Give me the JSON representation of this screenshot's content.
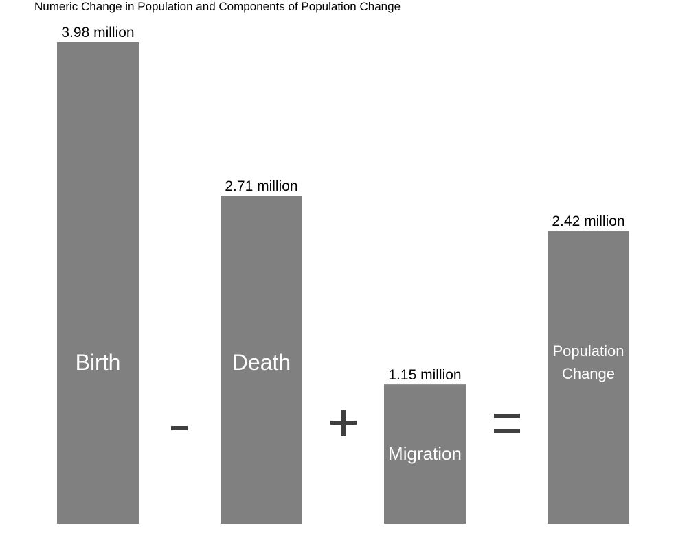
{
  "chart_data": {
    "type": "bar",
    "title": "Numeric Change in Population and Components of Population Change",
    "categories": [
      "Birth",
      "Death",
      "Migration",
      "Population Change"
    ],
    "category_label_lines": [
      [
        "Birth"
      ],
      [
        "Death"
      ],
      [
        "Migration"
      ],
      [
        "Population",
        "Change"
      ]
    ],
    "values": [
      3.98,
      2.71,
      1.15,
      2.42
    ],
    "value_labels": [
      "3.98 million",
      "2.71 million",
      "1.15 million",
      "2.42 million"
    ],
    "operators": [
      "-",
      "+",
      "="
    ],
    "unit": "million",
    "ylim": [
      0,
      3.98
    ],
    "grid": false,
    "legend": "none",
    "colors": {
      "bar": "#808080",
      "bar_label": "#ffffff",
      "value_label": "#000000",
      "operator": "#404040"
    }
  }
}
